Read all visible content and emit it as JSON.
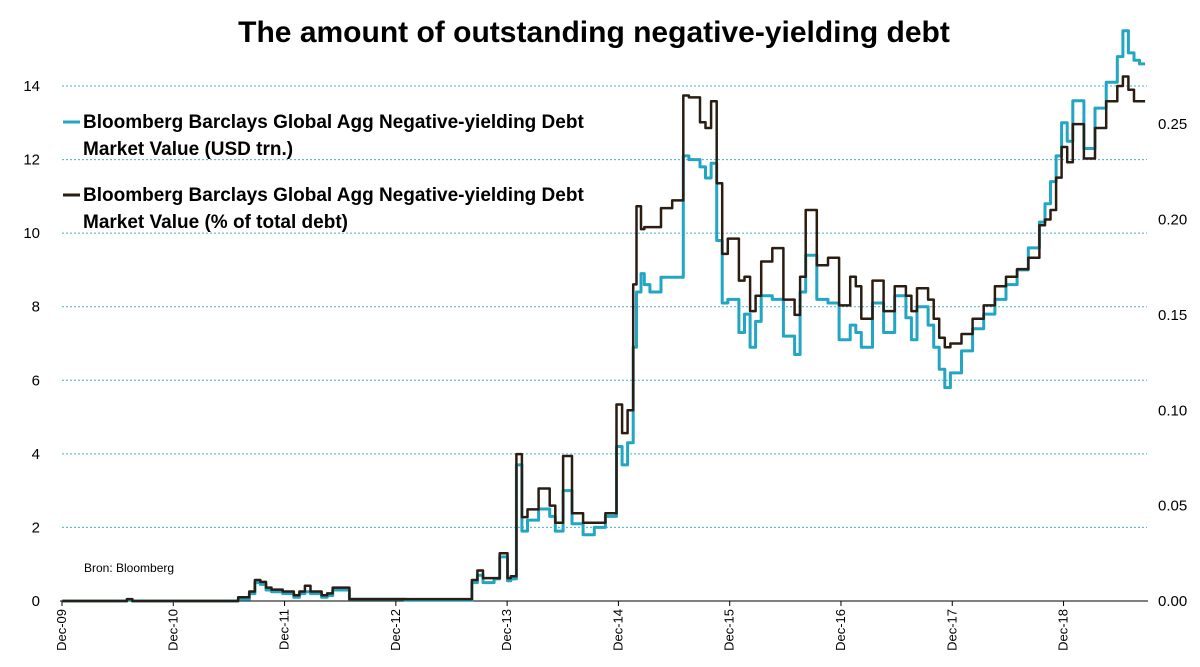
{
  "chart_data": {
    "type": "line",
    "title": "The amount of outstanding negative-yielding debt",
    "source": "Bron: Bloomberg",
    "x_tick_labels": [
      "Dec-09",
      "Dec-10",
      "Dec-11",
      "Dec-12",
      "Dec-13",
      "Dec-14",
      "Dec-15",
      "Dec-16",
      "Dec-17",
      "Dec-18"
    ],
    "x_range": [
      2009.917,
      2019.667
    ],
    "y_left": {
      "range": [
        0,
        14
      ],
      "ticks": [
        "0",
        "2",
        "4",
        "6",
        "8",
        "10",
        "12",
        "14"
      ]
    },
    "y_right": {
      "range": [
        0,
        0.27
      ],
      "ticks": [
        "0.00",
        "0.05",
        "0.10",
        "0.15",
        "0.20",
        "0.25"
      ]
    },
    "legend": {
      "placement": "top-left"
    },
    "grid": true,
    "colors": {
      "series_usd": "#22a6c3",
      "series_pct": "#2b1d12",
      "grid": "#4bb0c8"
    },
    "series": [
      {
        "name": "Bloomberg Barclays Global Agg Negative-yielding Debt Market Value (USD trn.)",
        "legend_lines": [
          "Bloomberg Barclays Global Agg Negative-yielding Debt",
          "Market Value (USD trn.)"
        ],
        "axis": "left",
        "x": [
          2009.92,
          2010.5,
          2010.55,
          2011.0,
          2011.5,
          2011.6,
          2011.65,
          2011.7,
          2011.75,
          2011.8,
          2011.9,
          2012.0,
          2012.05,
          2012.1,
          2012.15,
          2012.25,
          2012.3,
          2012.35,
          2012.5,
          2013.0,
          2013.5,
          2013.6,
          2013.65,
          2013.7,
          2013.75,
          2013.8,
          2013.85,
          2013.92,
          2013.95,
          2014.0,
          2014.05,
          2014.1,
          2014.2,
          2014.3,
          2014.35,
          2014.42,
          2014.5,
          2014.6,
          2014.7,
          2014.8,
          2014.9,
          2014.95,
          2015.0,
          2015.05,
          2015.08,
          2015.12,
          2015.15,
          2015.2,
          2015.3,
          2015.4,
          2015.5,
          2015.55,
          2015.65,
          2015.7,
          2015.75,
          2015.8,
          2015.85,
          2015.9,
          2016.0,
          2016.05,
          2016.1,
          2016.15,
          2016.2,
          2016.3,
          2016.4,
          2016.5,
          2016.55,
          2016.6,
          2016.7,
          2016.8,
          2016.9,
          2017.0,
          2017.05,
          2017.1,
          2017.2,
          2017.3,
          2017.4,
          2017.5,
          2017.55,
          2017.6,
          2017.7,
          2017.75,
          2017.8,
          2017.85,
          2017.9,
          2018.0,
          2018.1,
          2018.2,
          2018.3,
          2018.4,
          2018.5,
          2018.6,
          2018.7,
          2018.75,
          2018.8,
          2018.85,
          2018.9,
          2018.95,
          2019.0,
          2019.1,
          2019.2,
          2019.3,
          2019.4,
          2019.45,
          2019.5,
          2019.55,
          2019.6,
          2019.65
        ],
        "values": [
          0,
          0.02,
          0,
          0,
          0.05,
          0.2,
          0.5,
          0.45,
          0.3,
          0.25,
          0.2,
          0.1,
          0.2,
          0.25,
          0.2,
          0.1,
          0.15,
          0.3,
          0.05,
          0.02,
          0.02,
          0.5,
          0.7,
          0.5,
          0.5,
          0.6,
          1.2,
          0.55,
          0.6,
          3.7,
          1.9,
          2.2,
          2.5,
          2.3,
          1.9,
          3.0,
          2.1,
          1.8,
          2.0,
          2.3,
          4.2,
          3.7,
          4.3,
          6.9,
          8.4,
          8.9,
          8.6,
          8.4,
          8.8,
          8.8,
          12.1,
          12.0,
          11.8,
          11.5,
          11.9,
          9.8,
          8.1,
          8.2,
          7.3,
          7.8,
          6.9,
          7.6,
          8.3,
          8.2,
          7.2,
          6.7,
          8.4,
          9.4,
          8.2,
          8.1,
          7.1,
          7.5,
          7.3,
          6.9,
          8.1,
          7.3,
          8.3,
          7.7,
          7.1,
          8.0,
          7.5,
          6.9,
          6.3,
          5.8,
          6.2,
          6.8,
          7.4,
          7.8,
          8.2,
          8.6,
          9.0,
          9.6,
          10.3,
          10.8,
          11.4,
          12.1,
          13.0,
          12.5,
          13.6,
          12.3,
          13.4,
          14.1,
          14.8,
          15.5,
          14.9,
          14.7,
          14.6,
          14.6
        ],
        "values_note": "stylised read-off"
      },
      {
        "name": "Bloomberg Barclays Global Agg Negative-yielding Debt Market Value (% of total debt)",
        "legend_lines": [
          "Bloomberg Barclays Global Agg Negative-yielding Debt",
          "Market Value (% of total debt)"
        ],
        "axis": "right",
        "x": [
          2009.92,
          2010.5,
          2010.55,
          2011.0,
          2011.5,
          2011.6,
          2011.65,
          2011.7,
          2011.75,
          2011.8,
          2011.9,
          2012.0,
          2012.05,
          2012.1,
          2012.15,
          2012.25,
          2012.3,
          2012.35,
          2012.5,
          2013.0,
          2013.5,
          2013.6,
          2013.65,
          2013.7,
          2013.75,
          2013.8,
          2013.85,
          2013.92,
          2013.95,
          2014.0,
          2014.05,
          2014.1,
          2014.2,
          2014.3,
          2014.35,
          2014.42,
          2014.5,
          2014.6,
          2014.7,
          2014.8,
          2014.9,
          2014.95,
          2015.0,
          2015.05,
          2015.08,
          2015.12,
          2015.15,
          2015.2,
          2015.3,
          2015.4,
          2015.5,
          2015.55,
          2015.65,
          2015.7,
          2015.75,
          2015.8,
          2015.85,
          2015.9,
          2016.0,
          2016.05,
          2016.1,
          2016.15,
          2016.2,
          2016.3,
          2016.4,
          2016.5,
          2016.55,
          2016.6,
          2016.7,
          2016.8,
          2016.9,
          2017.0,
          2017.05,
          2017.1,
          2017.2,
          2017.3,
          2017.4,
          2017.5,
          2017.55,
          2017.6,
          2017.7,
          2017.75,
          2017.8,
          2017.85,
          2017.9,
          2018.0,
          2018.1,
          2018.2,
          2018.3,
          2018.4,
          2018.5,
          2018.6,
          2018.7,
          2018.75,
          2018.8,
          2018.85,
          2018.9,
          2018.95,
          2019.0,
          2019.1,
          2019.2,
          2019.3,
          2019.4,
          2019.45,
          2019.5,
          2019.55,
          2019.6,
          2019.65
        ],
        "values": [
          0,
          0.001,
          0,
          0,
          0.002,
          0.005,
          0.011,
          0.01,
          0.007,
          0.006,
          0.005,
          0.003,
          0.005,
          0.008,
          0.005,
          0.003,
          0.004,
          0.007,
          0.001,
          0.001,
          0.001,
          0.011,
          0.016,
          0.012,
          0.012,
          0.012,
          0.025,
          0.012,
          0.013,
          0.077,
          0.044,
          0.048,
          0.059,
          0.05,
          0.041,
          0.076,
          0.046,
          0.041,
          0.041,
          0.046,
          0.103,
          0.088,
          0.1,
          0.166,
          0.207,
          0.195,
          0.196,
          0.196,
          0.206,
          0.21,
          0.265,
          0.264,
          0.251,
          0.248,
          0.262,
          0.219,
          0.182,
          0.19,
          0.168,
          0.17,
          0.152,
          0.16,
          0.178,
          0.185,
          0.158,
          0.15,
          0.17,
          0.205,
          0.176,
          0.18,
          0.155,
          0.17,
          0.165,
          0.148,
          0.168,
          0.152,
          0.165,
          0.16,
          0.152,
          0.164,
          0.158,
          0.148,
          0.138,
          0.133,
          0.135,
          0.14,
          0.148,
          0.155,
          0.165,
          0.17,
          0.174,
          0.18,
          0.197,
          0.2,
          0.205,
          0.222,
          0.238,
          0.23,
          0.25,
          0.232,
          0.248,
          0.262,
          0.27,
          0.275,
          0.268,
          0.262,
          0.262,
          0.262
        ],
        "values_note": "stylised read-off"
      }
    ]
  }
}
